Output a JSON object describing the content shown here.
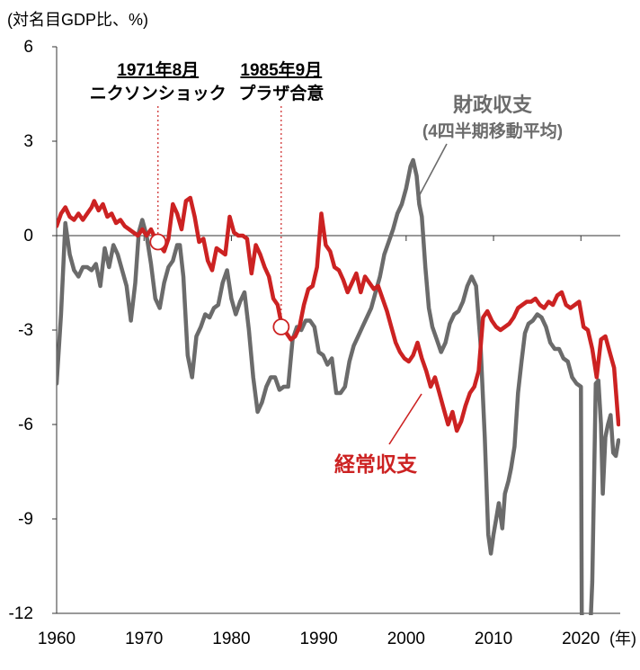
{
  "chart_data": {
    "type": "line",
    "title": "",
    "ylabel": "(対名目GDP比、%)",
    "xlabel": "(年)",
    "xlim": [
      1960,
      2024.5
    ],
    "ylim": [
      -12,
      6
    ],
    "xticks": [
      1960,
      1970,
      1980,
      1990,
      2000,
      2010,
      2020
    ],
    "yticks": [
      6,
      3,
      0,
      -3,
      -6,
      -9,
      -12
    ],
    "grid": false,
    "legend": "none",
    "colors": {
      "fiscal": "#6b6b6b",
      "current": "#cc2222",
      "axis": "#333333",
      "text": "#000000"
    },
    "series": [
      {
        "id": "fiscal",
        "name": "財政収支",
        "name_sub": "(4四半期移動平均)",
        "points": [
          [
            1960,
            -4.7
          ],
          [
            1960.5,
            -2.5
          ],
          [
            1961,
            0.4
          ],
          [
            1961.5,
            -0.6
          ],
          [
            1962,
            -1.1
          ],
          [
            1962.5,
            -1.3
          ],
          [
            1963,
            -1.0
          ],
          [
            1963.5,
            -1.0
          ],
          [
            1964,
            -1.1
          ],
          [
            1964.5,
            -0.9
          ],
          [
            1965,
            -1.6
          ],
          [
            1965.5,
            -0.4
          ],
          [
            1966,
            -1.0
          ],
          [
            1966.5,
            -0.3
          ],
          [
            1967,
            -0.6
          ],
          [
            1967.5,
            -1.1
          ],
          [
            1968,
            -1.6
          ],
          [
            1968.5,
            -2.7
          ],
          [
            1969,
            -1.5
          ],
          [
            1969.4,
            0.1
          ],
          [
            1969.8,
            0.5
          ],
          [
            1970.3,
            0.0
          ],
          [
            1970.8,
            -0.9
          ],
          [
            1971.3,
            -2.0
          ],
          [
            1971.8,
            -2.3
          ],
          [
            1972.3,
            -1.5
          ],
          [
            1972.8,
            -1.0
          ],
          [
            1973.3,
            -0.8
          ],
          [
            1973.8,
            -0.3
          ],
          [
            1974.1,
            -0.3
          ],
          [
            1974.5,
            -1.3
          ],
          [
            1975,
            -3.8
          ],
          [
            1975.5,
            -4.5
          ],
          [
            1976,
            -3.2
          ],
          [
            1976.5,
            -2.9
          ],
          [
            1977,
            -2.5
          ],
          [
            1977.5,
            -2.6
          ],
          [
            1978,
            -2.3
          ],
          [
            1978.5,
            -2.2
          ],
          [
            1979,
            -1.5
          ],
          [
            1979.5,
            -1.1
          ],
          [
            1980,
            -2.0
          ],
          [
            1980.5,
            -2.5
          ],
          [
            1981,
            -2.1
          ],
          [
            1981.5,
            -1.8
          ],
          [
            1982,
            -3.0
          ],
          [
            1982.5,
            -4.5
          ],
          [
            1983,
            -5.6
          ],
          [
            1983.5,
            -5.3
          ],
          [
            1984,
            -4.8
          ],
          [
            1984.5,
            -4.5
          ],
          [
            1985,
            -4.5
          ],
          [
            1985.5,
            -4.9
          ],
          [
            1986,
            -4.8
          ],
          [
            1986.5,
            -4.8
          ],
          [
            1987,
            -3.3
          ],
          [
            1987.5,
            -2.9
          ],
          [
            1988,
            -3.0
          ],
          [
            1988.5,
            -2.7
          ],
          [
            1989,
            -2.7
          ],
          [
            1989.5,
            -2.9
          ],
          [
            1990,
            -3.7
          ],
          [
            1990.5,
            -3.8
          ],
          [
            1991,
            -4.1
          ],
          [
            1991.5,
            -3.9
          ],
          [
            1992,
            -5.0
          ],
          [
            1992.5,
            -5.0
          ],
          [
            1993,
            -4.8
          ],
          [
            1993.5,
            -4.0
          ],
          [
            1994,
            -3.5
          ],
          [
            1994.5,
            -3.2
          ],
          [
            1995,
            -2.9
          ],
          [
            1995.5,
            -2.6
          ],
          [
            1996,
            -2.3
          ],
          [
            1996.5,
            -1.8
          ],
          [
            1997,
            -1.3
          ],
          [
            1997.5,
            -0.6
          ],
          [
            1998,
            -0.2
          ],
          [
            1998.5,
            0.2
          ],
          [
            1999,
            0.7
          ],
          [
            1999.5,
            1.0
          ],
          [
            2000,
            1.5
          ],
          [
            2000.5,
            2.2
          ],
          [
            2000.8,
            2.4
          ],
          [
            2001.2,
            1.9
          ],
          [
            2001.5,
            1.0
          ],
          [
            2001.8,
            0.6
          ],
          [
            2002.2,
            -1.0
          ],
          [
            2002.6,
            -2.3
          ],
          [
            2003,
            -2.9
          ],
          [
            2003.5,
            -3.3
          ],
          [
            2004,
            -3.7
          ],
          [
            2004.5,
            -3.4
          ],
          [
            2005,
            -2.8
          ],
          [
            2005.5,
            -2.5
          ],
          [
            2006,
            -2.4
          ],
          [
            2006.5,
            -2.1
          ],
          [
            2007,
            -1.6
          ],
          [
            2007.5,
            -1.3
          ],
          [
            2008,
            -1.6
          ],
          [
            2008.5,
            -3.4
          ],
          [
            2009,
            -6.4
          ],
          [
            2009.4,
            -9.5
          ],
          [
            2009.7,
            -10.1
          ],
          [
            2010,
            -9.5
          ],
          [
            2010.3,
            -9.0
          ],
          [
            2010.6,
            -8.5
          ],
          [
            2011,
            -9.3
          ],
          [
            2011.3,
            -8.2
          ],
          [
            2011.7,
            -7.8
          ],
          [
            2012,
            -7.4
          ],
          [
            2012.4,
            -6.7
          ],
          [
            2012.8,
            -5.0
          ],
          [
            2013.2,
            -4.0
          ],
          [
            2013.6,
            -3.1
          ],
          [
            2014,
            -2.8
          ],
          [
            2014.5,
            -2.7
          ],
          [
            2015,
            -2.5
          ],
          [
            2015.5,
            -2.6
          ],
          [
            2016,
            -2.9
          ],
          [
            2016.5,
            -3.4
          ],
          [
            2017,
            -3.6
          ],
          [
            2017.5,
            -3.6
          ],
          [
            2018,
            -3.9
          ],
          [
            2018.5,
            -4.0
          ],
          [
            2019,
            -4.5
          ],
          [
            2019.5,
            -4.7
          ],
          [
            2020,
            -4.8
          ],
          [
            2020.1,
            -12.0
          ],
          [
            2020.6,
            -13.5
          ],
          [
            2021,
            -13.0
          ],
          [
            2021.3,
            -11.0
          ],
          [
            2021.7,
            -4.7
          ],
          [
            2022,
            -4.6
          ],
          [
            2022.3,
            -6.0
          ],
          [
            2022.5,
            -8.2
          ],
          [
            2022.8,
            -6.4
          ],
          [
            2023.1,
            -6.0
          ],
          [
            2023.4,
            -5.7
          ],
          [
            2023.7,
            -6.9
          ],
          [
            2024,
            -7.0
          ],
          [
            2024.3,
            -6.5
          ]
        ]
      },
      {
        "id": "current",
        "name": "経常収支",
        "points": [
          [
            1960,
            0.3
          ],
          [
            1960.5,
            0.7
          ],
          [
            1961,
            0.9
          ],
          [
            1961.5,
            0.6
          ],
          [
            1962,
            0.5
          ],
          [
            1962.5,
            0.7
          ],
          [
            1963,
            0.5
          ],
          [
            1963.5,
            0.7
          ],
          [
            1964,
            0.9
          ],
          [
            1964.3,
            1.1
          ],
          [
            1964.8,
            0.8
          ],
          [
            1965.3,
            1.0
          ],
          [
            1965.8,
            0.6
          ],
          [
            1966.3,
            0.7
          ],
          [
            1966.8,
            0.4
          ],
          [
            1967.3,
            0.5
          ],
          [
            1967.8,
            0.3
          ],
          [
            1968.3,
            0.2
          ],
          [
            1968.8,
            0.1
          ],
          [
            1969.3,
            0.0
          ],
          [
            1969.8,
            0.2
          ],
          [
            1970.3,
            0.0
          ],
          [
            1970.8,
            0.2
          ],
          [
            1971.3,
            -0.1
          ],
          [
            1971.8,
            -0.3
          ],
          [
            1972.3,
            -0.5
          ],
          [
            1972.8,
            -0.1
          ],
          [
            1973.3,
            1.0
          ],
          [
            1973.8,
            0.7
          ],
          [
            1974.3,
            0.2
          ],
          [
            1974.8,
            1.1
          ],
          [
            1975.3,
            1.2
          ],
          [
            1975.8,
            0.6
          ],
          [
            1976.3,
            -0.2
          ],
          [
            1976.8,
            -0.1
          ],
          [
            1977.3,
            -0.8
          ],
          [
            1977.8,
            -1.1
          ],
          [
            1978.3,
            -0.4
          ],
          [
            1978.8,
            -0.5
          ],
          [
            1979.3,
            -0.6
          ],
          [
            1979.8,
            0.6
          ],
          [
            1980.3,
            0.1
          ],
          [
            1980.8,
            0.0
          ],
          [
            1981.3,
            0.0
          ],
          [
            1981.8,
            -0.1
          ],
          [
            1982.3,
            -1.2
          ],
          [
            1982.8,
            -0.3
          ],
          [
            1983.3,
            -0.6
          ],
          [
            1983.8,
            -1.0
          ],
          [
            1984.3,
            -1.3
          ],
          [
            1984.8,
            -2.0
          ],
          [
            1985.3,
            -2.2
          ],
          [
            1985.8,
            -2.9
          ],
          [
            1986.3,
            -3.1
          ],
          [
            1986.8,
            -3.3
          ],
          [
            1987.3,
            -3.2
          ],
          [
            1987.8,
            -2.9
          ],
          [
            1988.3,
            -2.2
          ],
          [
            1988.8,
            -1.7
          ],
          [
            1989.3,
            -1.6
          ],
          [
            1989.8,
            -1.0
          ],
          [
            1990.3,
            0.7
          ],
          [
            1990.8,
            -0.3
          ],
          [
            1991.3,
            -0.5
          ],
          [
            1991.8,
            -1.0
          ],
          [
            1992.3,
            -1.1
          ],
          [
            1992.8,
            -1.4
          ],
          [
            1993.3,
            -1.8
          ],
          [
            1993.8,
            -1.5
          ],
          [
            1994.3,
            -1.2
          ],
          [
            1994.8,
            -1.8
          ],
          [
            1995.3,
            -1.3
          ],
          [
            1995.8,
            -1.5
          ],
          [
            1996.3,
            -1.7
          ],
          [
            1996.8,
            -1.6
          ],
          [
            1997.3,
            -2.0
          ],
          [
            1997.8,
            -2.4
          ],
          [
            1998.3,
            -2.9
          ],
          [
            1998.8,
            -3.4
          ],
          [
            1999.3,
            -3.7
          ],
          [
            1999.8,
            -3.9
          ],
          [
            2000.3,
            -4.0
          ],
          [
            2000.8,
            -3.8
          ],
          [
            2001.3,
            -3.4
          ],
          [
            2001.8,
            -3.9
          ],
          [
            2002.3,
            -4.3
          ],
          [
            2002.8,
            -4.8
          ],
          [
            2003.3,
            -4.5
          ],
          [
            2003.8,
            -5.0
          ],
          [
            2004.3,
            -5.5
          ],
          [
            2004.8,
            -6.0
          ],
          [
            2005.3,
            -5.6
          ],
          [
            2005.8,
            -6.2
          ],
          [
            2006.3,
            -5.9
          ],
          [
            2006.8,
            -5.4
          ],
          [
            2007.3,
            -5.0
          ],
          [
            2007.8,
            -4.8
          ],
          [
            2008.3,
            -4.3
          ],
          [
            2008.8,
            -2.6
          ],
          [
            2009.3,
            -2.4
          ],
          [
            2009.8,
            -2.7
          ],
          [
            2010.3,
            -2.9
          ],
          [
            2010.8,
            -3.0
          ],
          [
            2011.3,
            -2.9
          ],
          [
            2011.8,
            -2.8
          ],
          [
            2012.3,
            -2.6
          ],
          [
            2012.8,
            -2.3
          ],
          [
            2013.3,
            -2.2
          ],
          [
            2013.8,
            -2.1
          ],
          [
            2014.3,
            -2.1
          ],
          [
            2014.8,
            -2.0
          ],
          [
            2015.3,
            -2.2
          ],
          [
            2015.8,
            -2.3
          ],
          [
            2016.3,
            -2.1
          ],
          [
            2016.8,
            -2.2
          ],
          [
            2017.3,
            -1.9
          ],
          [
            2017.8,
            -1.8
          ],
          [
            2018.3,
            -2.2
          ],
          [
            2018.8,
            -2.3
          ],
          [
            2019.3,
            -2.2
          ],
          [
            2019.8,
            -2.1
          ],
          [
            2020.3,
            -2.9
          ],
          [
            2020.8,
            -3.0
          ],
          [
            2021.3,
            -3.6
          ],
          [
            2021.8,
            -4.5
          ],
          [
            2022.3,
            -3.3
          ],
          [
            2022.8,
            -3.2
          ],
          [
            2023.3,
            -3.7
          ],
          [
            2023.8,
            -4.2
          ],
          [
            2024.3,
            -6.0
          ]
        ]
      }
    ],
    "annotations": [
      {
        "id": "nixon",
        "date": "1971年8月",
        "label": "ニクソンショック",
        "x": 1971.6,
        "y": -0.2
      },
      {
        "id": "plaza",
        "date": "1985年9月",
        "label": "プラザ合意",
        "x": 1985.7,
        "y": -2.9
      }
    ]
  }
}
